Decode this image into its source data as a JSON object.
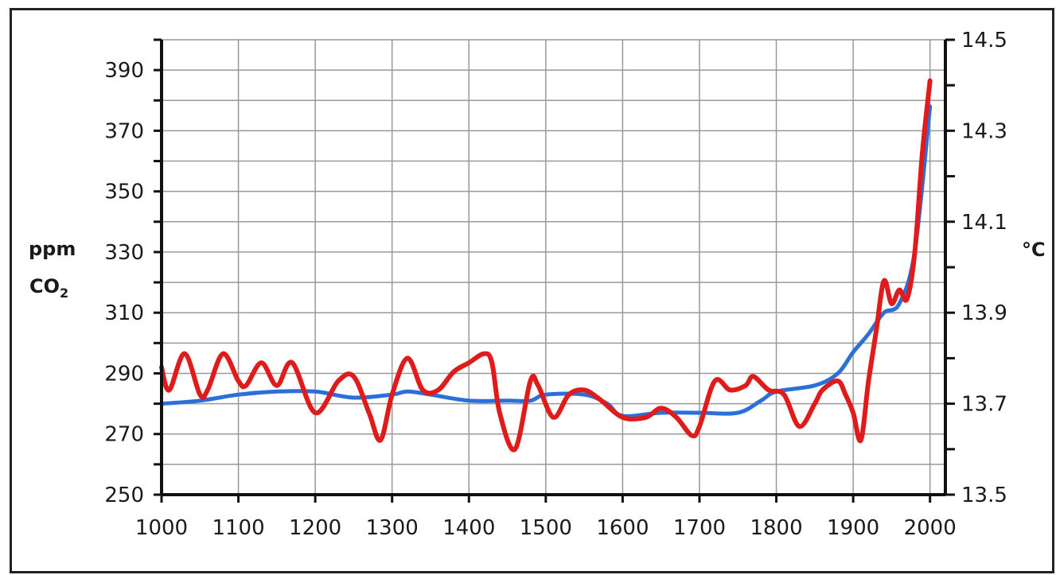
{
  "chart_data": {
    "type": "line",
    "title": "",
    "xlabel": "",
    "y_left_label_line1": "ppm",
    "y_left_label_line2_main": "CO",
    "y_left_label_line2_sub": "2",
    "y_right_label": "°C",
    "xlim": [
      1000,
      2020
    ],
    "ylim_left": [
      250,
      400
    ],
    "ylim_right": [
      13.5,
      14.5
    ],
    "x_ticks": [
      "1000",
      "1100",
      "1200",
      "1300",
      "1400",
      "1500",
      "1600",
      "1700",
      "1800",
      "1900",
      "2000"
    ],
    "y_left_ticks": [
      "250",
      "270",
      "290",
      "310",
      "330",
      "350",
      "370",
      "390"
    ],
    "y_right_ticks": [
      "13.5",
      "13.7",
      "13.9",
      "14.1",
      "14.3",
      "14.5"
    ],
    "grid": true,
    "colors": {
      "co2": "#2b6fd8",
      "temperature": "#e01b1b",
      "grid": "#999999",
      "axis": "#111111"
    },
    "series": [
      {
        "axis": "left",
        "x": [
          1000,
          1050,
          1100,
          1150,
          1200,
          1250,
          1300,
          1320,
          1350,
          1400,
          1450,
          1480,
          1500,
          1550,
          1580,
          1600,
          1650,
          1700,
          1750,
          1780,
          1800,
          1850,
          1880,
          1900,
          1920,
          1940,
          1960,
          1980,
          2000
        ],
        "y": [
          280,
          281,
          283,
          284,
          284,
          282,
          283,
          284,
          283,
          281,
          281,
          281,
          283,
          283,
          280,
          276,
          277,
          277,
          277,
          281,
          284,
          286,
          290,
          297,
          303,
          310,
          313,
          330,
          378
        ]
      },
      {
        "axis": "right",
        "x": [
          1000,
          1010,
          1030,
          1050,
          1060,
          1080,
          1100,
          1110,
          1130,
          1150,
          1170,
          1200,
          1230,
          1250,
          1270,
          1285,
          1300,
          1320,
          1340,
          1360,
          1380,
          1400,
          1420,
          1430,
          1440,
          1460,
          1480,
          1490,
          1510,
          1530,
          1550,
          1570,
          1600,
          1630,
          1650,
          1670,
          1690,
          1700,
          1720,
          1740,
          1760,
          1770,
          1790,
          1810,
          1830,
          1850,
          1860,
          1880,
          1890,
          1900,
          1910,
          1920,
          1930,
          1940,
          1950,
          1960,
          1970,
          1980,
          1990,
          2000
        ],
        "y": [
          13.78,
          13.73,
          13.81,
          13.72,
          13.73,
          13.81,
          13.75,
          13.74,
          13.79,
          13.74,
          13.79,
          13.68,
          13.75,
          13.76,
          13.68,
          13.62,
          13.72,
          13.8,
          13.73,
          13.73,
          13.77,
          13.79,
          13.81,
          13.79,
          13.68,
          13.6,
          13.75,
          13.74,
          13.67,
          13.72,
          13.73,
          13.71,
          13.67,
          13.67,
          13.69,
          13.67,
          13.63,
          13.65,
          13.75,
          13.73,
          13.74,
          13.76,
          13.73,
          13.72,
          13.65,
          13.7,
          13.73,
          13.75,
          13.72,
          13.68,
          13.62,
          13.75,
          13.86,
          13.97,
          13.92,
          13.95,
          13.93,
          14.03,
          14.25,
          14.41
        ]
      }
    ]
  }
}
